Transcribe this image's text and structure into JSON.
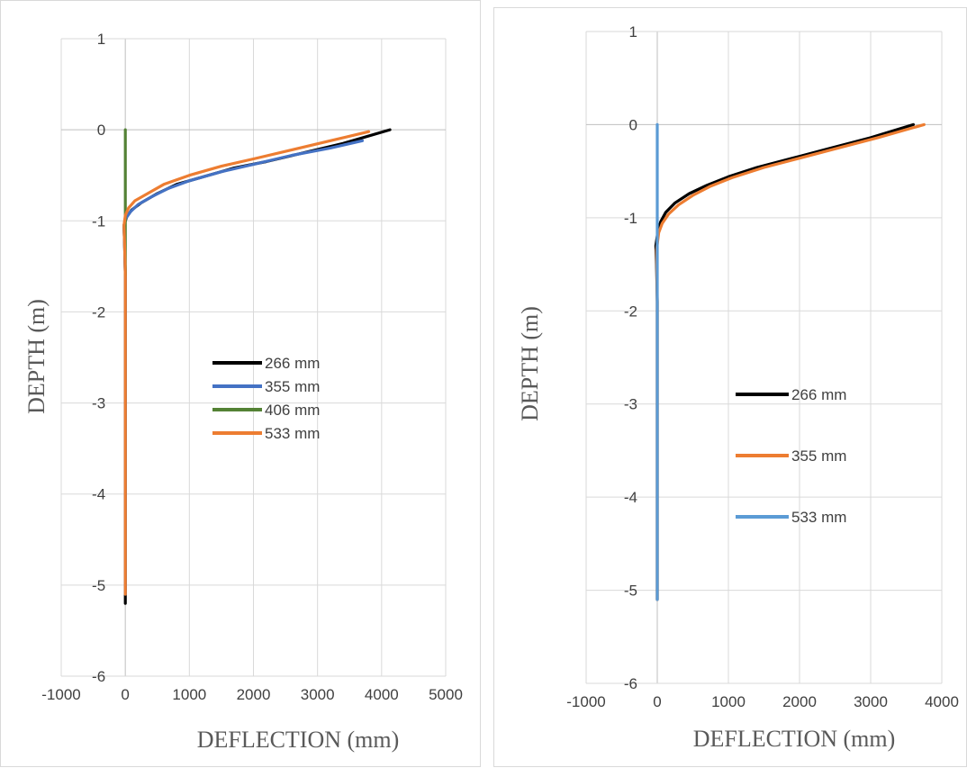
{
  "chart_data": [
    {
      "type": "line",
      "xlabel": "DEFLECTION (mm)",
      "ylabel": "DEPTH (m)",
      "xlim": [
        -1000,
        5000
      ],
      "ylim": [
        -6,
        1
      ],
      "x_ticks": [
        "-1000",
        "0",
        "1000",
        "2000",
        "3000",
        "4000",
        "5000"
      ],
      "y_ticks": [
        "1",
        "0",
        "-1",
        "-2",
        "-3",
        "-4",
        "-5",
        "-6"
      ],
      "grid": true,
      "legend_position": "center-right",
      "series": [
        {
          "name": "266 mm",
          "color": "#000000",
          "x": [
            4130,
            3400,
            2800,
            2200,
            1700,
            1200,
            800,
            500,
            250,
            100,
            20,
            -20,
            -10,
            0,
            0,
            0,
            0,
            0
          ],
          "y": [
            0,
            -0.15,
            -0.25,
            -0.35,
            -0.42,
            -0.52,
            -0.6,
            -0.7,
            -0.8,
            -0.88,
            -0.96,
            -1.05,
            -1.3,
            -1.6,
            -2.5,
            -3.5,
            -4.5,
            -5.2
          ]
        },
        {
          "name": "355 mm",
          "color": "#4472C4",
          "x": [
            3700,
            3200,
            2600,
            2000,
            1500,
            1000,
            650,
            400,
            200,
            80,
            10,
            -20,
            -10,
            0,
            0,
            0,
            0
          ],
          "y": [
            -0.12,
            -0.2,
            -0.28,
            -0.38,
            -0.46,
            -0.56,
            -0.65,
            -0.74,
            -0.82,
            -0.9,
            -0.97,
            -1.05,
            -1.3,
            -1.6,
            -2.5,
            -3.5,
            -5.1
          ]
        },
        {
          "name": "406 mm",
          "color": "#548235",
          "x": [
            0,
            0,
            0,
            0,
            0
          ],
          "y": [
            0,
            -0.5,
            -1.0,
            -1.4,
            -1.6
          ]
        },
        {
          "name": "533 mm",
          "color": "#ED7D31",
          "x": [
            3800,
            3200,
            2600,
            2000,
            1500,
            1000,
            600,
            350,
            150,
            50,
            0,
            -20,
            -10,
            0,
            0,
            0,
            0
          ],
          "y": [
            -0.02,
            -0.12,
            -0.22,
            -0.32,
            -0.4,
            -0.5,
            -0.6,
            -0.7,
            -0.78,
            -0.86,
            -0.94,
            -1.05,
            -1.3,
            -1.6,
            -2.5,
            -3.5,
            -5.1
          ]
        }
      ]
    },
    {
      "type": "line",
      "xlabel": "DEFLECTION (mm)",
      "ylabel": "DEPTH (m)",
      "xlim": [
        -1000,
        4000
      ],
      "ylim": [
        -6,
        1
      ],
      "x_ticks": [
        "-1000",
        "0",
        "1000",
        "2000",
        "3000",
        "4000"
      ],
      "y_ticks": [
        "1",
        "0",
        "-1",
        "-2",
        "-3",
        "-4",
        "-5",
        "-6"
      ],
      "grid": true,
      "legend_position": "center-right",
      "series": [
        {
          "name": "266 mm",
          "color": "#000000",
          "x": [
            3600,
            3000,
            2400,
            1900,
            1400,
            1000,
            700,
            450,
            250,
            120,
            50,
            10,
            -20,
            -10,
            0,
            0,
            0,
            0
          ],
          "y": [
            0,
            -0.14,
            -0.26,
            -0.36,
            -0.46,
            -0.56,
            -0.65,
            -0.74,
            -0.84,
            -0.94,
            -1.04,
            -1.14,
            -1.3,
            -1.5,
            -1.9,
            -3.0,
            -4.0,
            -5.1
          ]
        },
        {
          "name": "355 mm",
          "color": "#ED7D31",
          "x": [
            3750,
            3100,
            2500,
            2000,
            1500,
            1050,
            750,
            500,
            300,
            160,
            70,
            20,
            -10,
            -5,
            0,
            0,
            0,
            0
          ],
          "y": [
            0,
            -0.14,
            -0.26,
            -0.36,
            -0.46,
            -0.57,
            -0.66,
            -0.76,
            -0.86,
            -0.96,
            -1.06,
            -1.16,
            -1.35,
            -1.55,
            -1.9,
            -3.0,
            -4.0,
            -5.1
          ]
        },
        {
          "name": "533 mm",
          "color": "#5B9BD5",
          "x": [
            0,
            0,
            0,
            0,
            0,
            0
          ],
          "y": [
            0,
            -1.0,
            -2.0,
            -3.0,
            -4.0,
            -5.1
          ]
        }
      ]
    }
  ]
}
